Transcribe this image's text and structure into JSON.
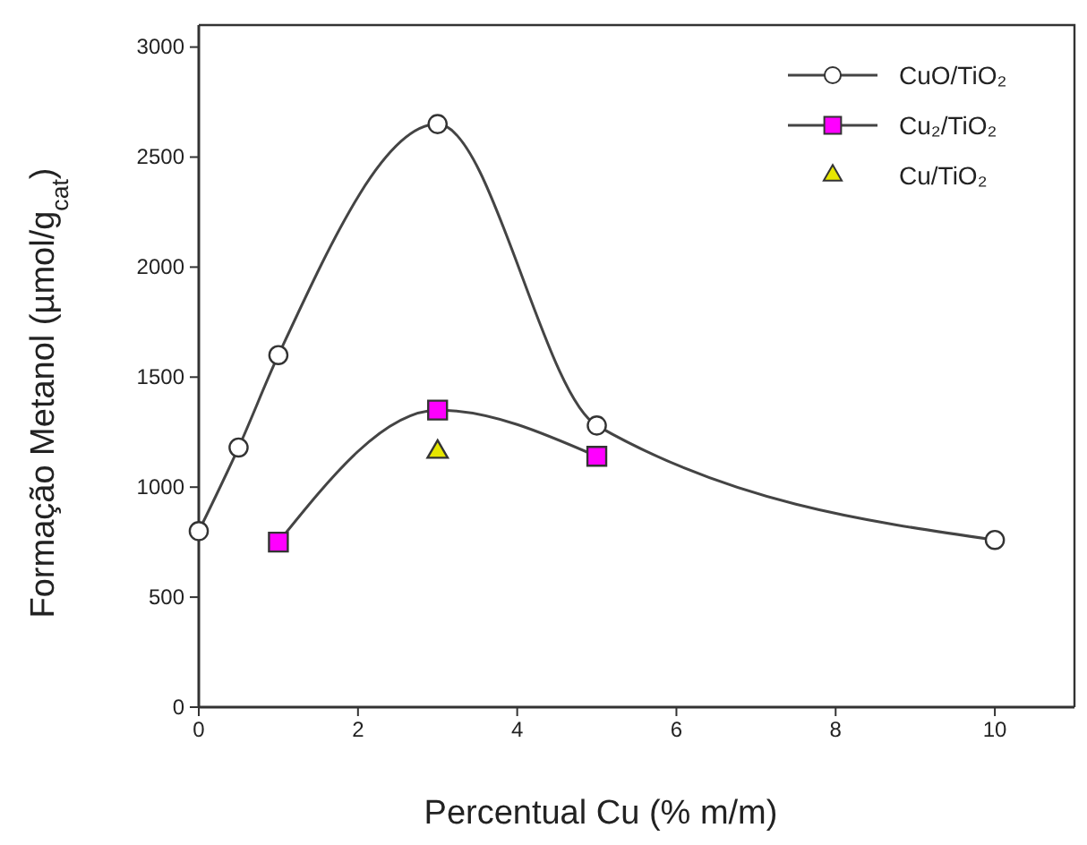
{
  "chart_data": {
    "type": "line",
    "xlabel": "Percentual Cu (% m/m)",
    "ylabel": "Formação Metanol (µmol/g$_{cat}$)",
    "xlim": [
      0,
      11
    ],
    "xticks": [
      0,
      2,
      4,
      6,
      8,
      10
    ],
    "ylim": [
      0,
      3100
    ],
    "yticks": [
      0,
      500,
      1000,
      1500,
      2000,
      2500,
      3000
    ],
    "grid": false,
    "legend": "top right",
    "series": [
      {
        "name": "CuO/TiO₂",
        "marker": "circle",
        "color": "#ffffff",
        "x": [
          0,
          0.5,
          1,
          3,
          5,
          10
        ],
        "values": [
          800,
          1180,
          1600,
          2650,
          1280,
          760
        ]
      },
      {
        "name": "Cu₂/TiO₂",
        "marker": "square",
        "color": "#ff00ff",
        "x": [
          1,
          3,
          5
        ],
        "values": [
          750,
          1350,
          1140
        ]
      },
      {
        "name": "Cu/TiO₂",
        "type": "scatter",
        "marker": "triangle",
        "color": "#e6e600",
        "x": [
          3
        ],
        "values": [
          1160
        ]
      }
    ]
  }
}
